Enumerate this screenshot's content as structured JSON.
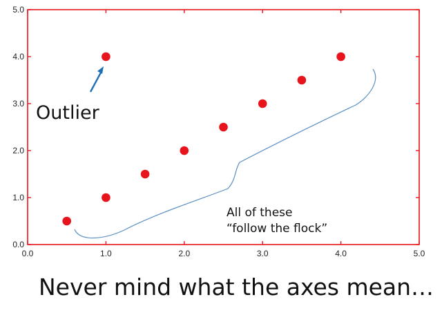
{
  "chart_data": {
    "type": "scatter",
    "title": "",
    "xlabel": "",
    "ylabel": "",
    "xlim": [
      0,
      5
    ],
    "ylim": [
      0,
      5
    ],
    "x_ticks": [
      "0.0",
      "1.0",
      "2.0",
      "3.0",
      "4.0",
      "5.0"
    ],
    "y_ticks": [
      "0.0",
      "1.0",
      "2.0",
      "3.0",
      "4.0",
      "5.0"
    ],
    "grid": false,
    "points": [
      {
        "x": 0.5,
        "y": 0.5
      },
      {
        "x": 1.0,
        "y": 1.0
      },
      {
        "x": 1.5,
        "y": 1.5
      },
      {
        "x": 2.0,
        "y": 2.0
      },
      {
        "x": 2.5,
        "y": 2.5
      },
      {
        "x": 3.0,
        "y": 3.0
      },
      {
        "x": 3.5,
        "y": 3.5
      },
      {
        "x": 4.0,
        "y": 4.0
      },
      {
        "x": 1.0,
        "y": 4.0
      }
    ],
    "annotations": {
      "outlier": "Outlier",
      "flock_line1": "All of these",
      "flock_line2": "“follow the flock”"
    },
    "colors": {
      "frame": "#e8141b",
      "points": "#e8141b",
      "arrow": "#1f6fb5",
      "brace": "#5a8fc2"
    }
  },
  "caption": "Never mind what the axes mean…"
}
